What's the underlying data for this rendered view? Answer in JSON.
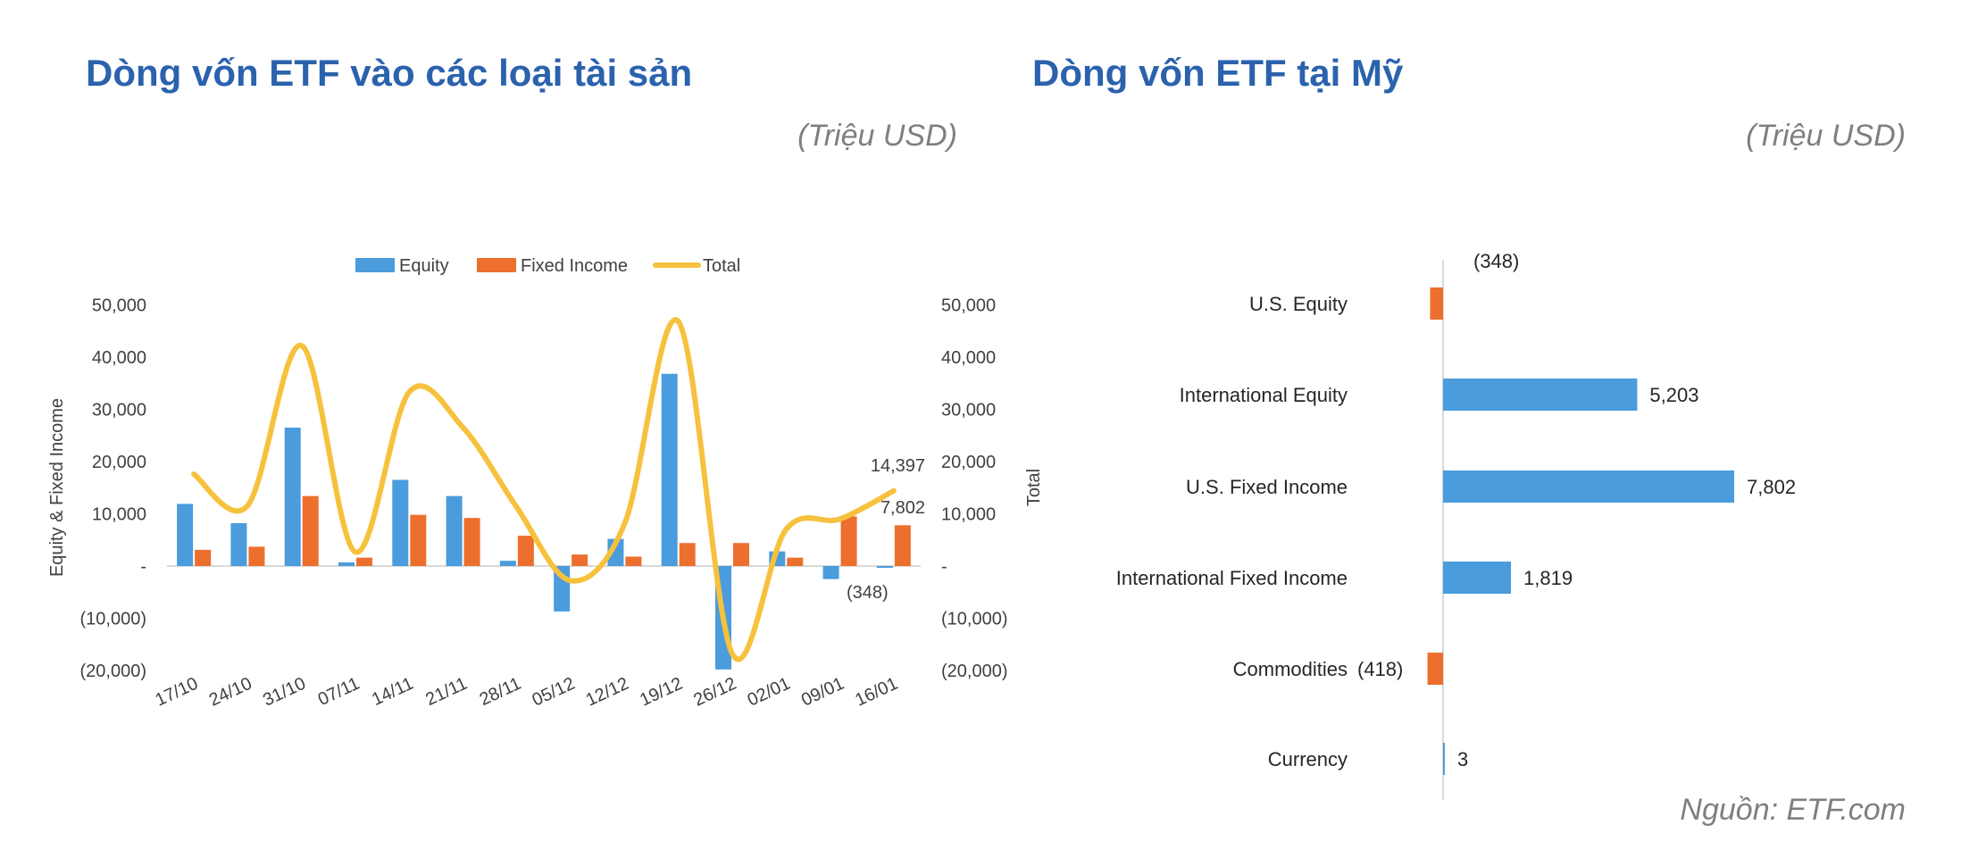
{
  "left_title": "Dòng vốn ETF vào các loại tài sản",
  "left_unit": "(Triệu USD)",
  "right_title": "Dòng vốn ETF tại Mỹ",
  "right_unit": "(Triệu USD)",
  "source": "Nguồn: ETF.com",
  "colors": {
    "equity": "#4a9cdc",
    "fixed_income": "#ec6f2d",
    "total": "#f6c13d",
    "title": "#2b62ad"
  },
  "chart_data": [
    {
      "type": "bar+line",
      "title": "Dòng vốn ETF vào các loại tài sản",
      "categories": [
        "17/10",
        "24/10",
        "31/10",
        "07/11",
        "14/11",
        "21/11",
        "28/11",
        "05/12",
        "12/12",
        "19/12",
        "26/12",
        "02/01",
        "09/01",
        "16/01"
      ],
      "series": [
        {
          "name": "Equity",
          "type": "bar",
          "axis": "left",
          "values": [
            11900,
            8200,
            26500,
            700,
            16500,
            13400,
            1000,
            -8700,
            5200,
            36800,
            -19800,
            2800,
            -2500,
            -348
          ]
        },
        {
          "name": "Fixed Income",
          "type": "bar",
          "axis": "left",
          "values": [
            3100,
            3700,
            13400,
            1600,
            9800,
            9200,
            5800,
            2200,
            1800,
            4400,
            4400,
            1600,
            9500,
            7802
          ]
        },
        {
          "name": "Total",
          "type": "line",
          "axis": "right",
          "values": [
            17600,
            11600,
            42200,
            2700,
            33300,
            26500,
            11200,
            -2800,
            8100,
            46800,
            -16800,
            7000,
            9000,
            14397
          ]
        }
      ],
      "ylabel": "Equity & Fixed Income",
      "y2label": "Total",
      "ylim": [
        -20000,
        50000
      ],
      "yticks": [
        "(20,000)",
        "(10,000)",
        "-",
        "10,000",
        "20,000",
        "30,000",
        "40,000",
        "50,000"
      ],
      "ytick_values": [
        -20000,
        -10000,
        0,
        10000,
        20000,
        30000,
        40000,
        50000
      ],
      "legend": [
        "Equity",
        "Fixed Income",
        "Total"
      ],
      "legend_position": "top",
      "data_labels": {
        "total_last": "14,397",
        "fixed_income_last": "7,802",
        "equity_last": "(348)"
      }
    },
    {
      "type": "bar",
      "orientation": "horizontal",
      "title": "Dòng vốn ETF tại Mỹ",
      "categories": [
        "U.S. Equity",
        "International Equity",
        "U.S. Fixed Income",
        "International Fixed Income",
        "Commodities",
        "Currency"
      ],
      "values": [
        -348,
        5203,
        7802,
        1819,
        -418,
        3
      ],
      "value_labels": [
        "(348)",
        "5,203",
        "7,802",
        "1,819",
        "(418)",
        "3"
      ]
    }
  ]
}
